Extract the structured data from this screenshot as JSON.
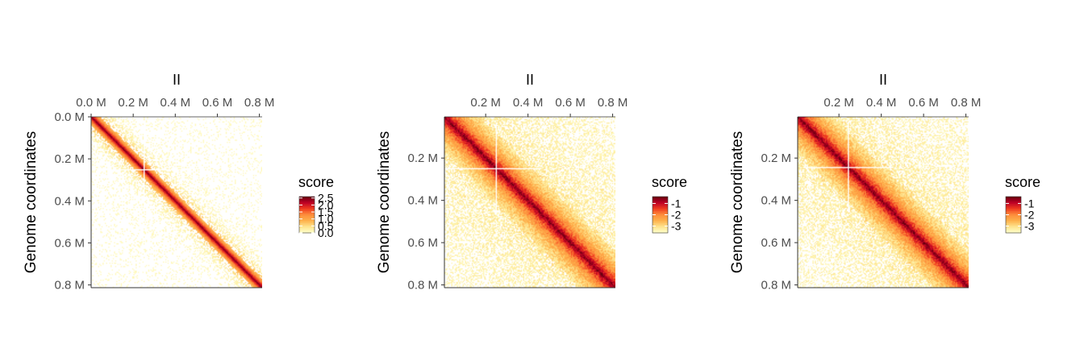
{
  "chart_data": [
    {
      "type": "heatmap",
      "title": "II",
      "xlabel": "",
      "ylabel": "Genome coordinates",
      "x_ticks": [
        "0.0 M",
        "0.2 M",
        "0.4 M",
        "0.6 M",
        "0.8 M"
      ],
      "x_tick_values": [
        0.0,
        0.2,
        0.4,
        0.6,
        0.8
      ],
      "y_ticks": [
        "0.0 M",
        "0.2 M",
        "0.4 M",
        "0.6 M",
        "0.8 M"
      ],
      "y_tick_values": [
        0.0,
        0.2,
        0.4,
        0.6,
        0.8
      ],
      "xlim": [
        0.0,
        0.813
      ],
      "ylim": [
        0.0,
        0.813
      ],
      "axis_units": "Mb",
      "legend": {
        "title": "score",
        "labels": [
          "2.5",
          "2.0",
          "1.5",
          "1.0",
          "0.5",
          "0.0"
        ],
        "values": [
          2.5,
          2.0,
          1.5,
          1.0,
          0.5,
          0.0
        ],
        "range": [
          0.0,
          2.6
        ],
        "placement": "right"
      },
      "colormap": [
        "#FFFFCC",
        "#FEE58F",
        "#FEB24C",
        "#FD8D3C",
        "#F03B20",
        "#BD0026",
        "#67000D"
      ],
      "features": {
        "diagonal_max": 2.4,
        "background": 0.05,
        "white_cross_at": 0.25
      }
    },
    {
      "type": "heatmap",
      "title": "II",
      "xlabel": "",
      "ylabel": "Genome coordinates",
      "x_ticks": [
        "0.2 M",
        "0.4 M",
        "0.6 M",
        "0.8 M"
      ],
      "x_tick_values": [
        0.2,
        0.4,
        0.6,
        0.8
      ],
      "y_ticks": [
        "0.2 M",
        "0.4 M",
        "0.6 M",
        "0.8 M"
      ],
      "y_tick_values": [
        0.2,
        0.4,
        0.6,
        0.8
      ],
      "xlim": [
        0.005,
        0.813
      ],
      "ylim": [
        0.005,
        0.813
      ],
      "axis_units": "Mb",
      "legend": {
        "title": "score",
        "labels": [
          "-1",
          "-2",
          "-3"
        ],
        "values": [
          -1,
          -2,
          -3
        ],
        "range": [
          -3.6,
          -0.4
        ],
        "placement": "right"
      },
      "colormap": [
        "#FFFFCC",
        "#FEE58F",
        "#FEB24C",
        "#FD8D3C",
        "#F03B20",
        "#BD0026",
        "#67000D"
      ],
      "features": {
        "diagonal_max": -0.9,
        "background": -3.2,
        "white_cross_at": 0.25
      }
    },
    {
      "type": "heatmap",
      "title": "II",
      "xlabel": "",
      "ylabel": "Genome coordinates",
      "x_ticks": [
        "0.2 M",
        "0.4 M",
        "0.6 M",
        "0.8 M"
      ],
      "x_tick_values": [
        0.2,
        0.4,
        0.6,
        0.8
      ],
      "y_ticks": [
        "0.2 M",
        "0.4 M",
        "0.6 M",
        "0.8 M"
      ],
      "y_tick_values": [
        0.2,
        0.4,
        0.6,
        0.8
      ],
      "xlim": [
        0.005,
        0.813
      ],
      "ylim": [
        0.005,
        0.813
      ],
      "axis_units": "Mb",
      "legend": {
        "title": "score",
        "labels": [
          "-1",
          "-2",
          "-3"
        ],
        "values": [
          -1,
          -2,
          -3
        ],
        "range": [
          -3.6,
          -0.4
        ],
        "placement": "right"
      },
      "colormap": [
        "#FFFFCC",
        "#FEE58F",
        "#FEB24C",
        "#FD8D3C",
        "#F03B20",
        "#BD0026",
        "#67000D"
      ],
      "features": {
        "diagonal_max": -0.9,
        "background": -3.2,
        "white_cross_at": 0.24
      }
    }
  ]
}
